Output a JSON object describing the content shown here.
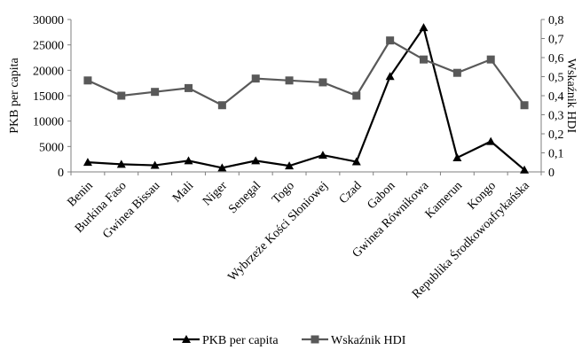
{
  "chart_data": {
    "type": "line",
    "categories": [
      "Benin",
      "Burkina Faso",
      "Gwinea Bissau",
      "Mali",
      "Niger",
      "Senegal",
      "Togo",
      "Wybrzeże Kości Słoniowej",
      "Czad",
      "Gabon",
      "Gwinea Równikowa",
      "Kamerun",
      "Kongo",
      "Republika Środkowoafrykańska"
    ],
    "ylabel": "PKB per capita",
    "y2label": "Wskaźnik HDI",
    "ylim": [
      0,
      30000
    ],
    "y2lim": [
      0,
      0.8
    ],
    "yticks": [
      "0",
      "5000",
      "10000",
      "15000",
      "20000",
      "25000",
      "30000"
    ],
    "y2ticks": [
      "0",
      "0,1",
      "0,2",
      "0,3",
      "0,4",
      "0,5",
      "0,6",
      "0,7",
      "0,8"
    ],
    "grid": false,
    "legend_position": "bottom",
    "series": [
      {
        "name": "PKB per capita",
        "axis": "left",
        "marker": "triangle",
        "color": "#000000",
        "values": [
          1900,
          1500,
          1300,
          2200,
          800,
          2200,
          1200,
          3300,
          2000,
          18800,
          28400,
          2800,
          6000,
          400
        ]
      },
      {
        "name": "Wskaźnik HDI",
        "axis": "right",
        "marker": "square",
        "color": "#595959",
        "values": [
          0.48,
          0.4,
          0.42,
          0.44,
          0.35,
          0.49,
          0.48,
          0.47,
          0.4,
          0.69,
          0.59,
          0.52,
          0.59,
          0.35
        ]
      }
    ]
  }
}
